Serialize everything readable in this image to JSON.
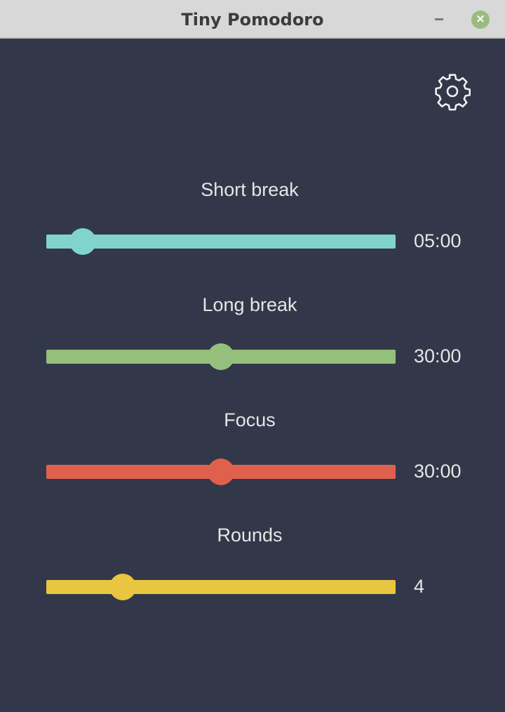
{
  "window": {
    "title": "Tiny Pomodoro",
    "minimize_icon": "minimize-icon",
    "close_icon": "close-icon",
    "close_color": "#9cba7f"
  },
  "settings_icon": "gear-icon",
  "sliders": [
    {
      "label": "Short break",
      "value": "05:00",
      "position": 0.104,
      "color": "#81d4cd"
    },
    {
      "label": "Long break",
      "value": "30:00",
      "position": 0.5,
      "color": "#94c07c"
    },
    {
      "label": "Focus",
      "value": "30:00",
      "position": 0.5,
      "color": "#e0604e"
    },
    {
      "label": "Rounds",
      "value": "4",
      "position": 0.219,
      "color": "#e8c63f"
    }
  ]
}
